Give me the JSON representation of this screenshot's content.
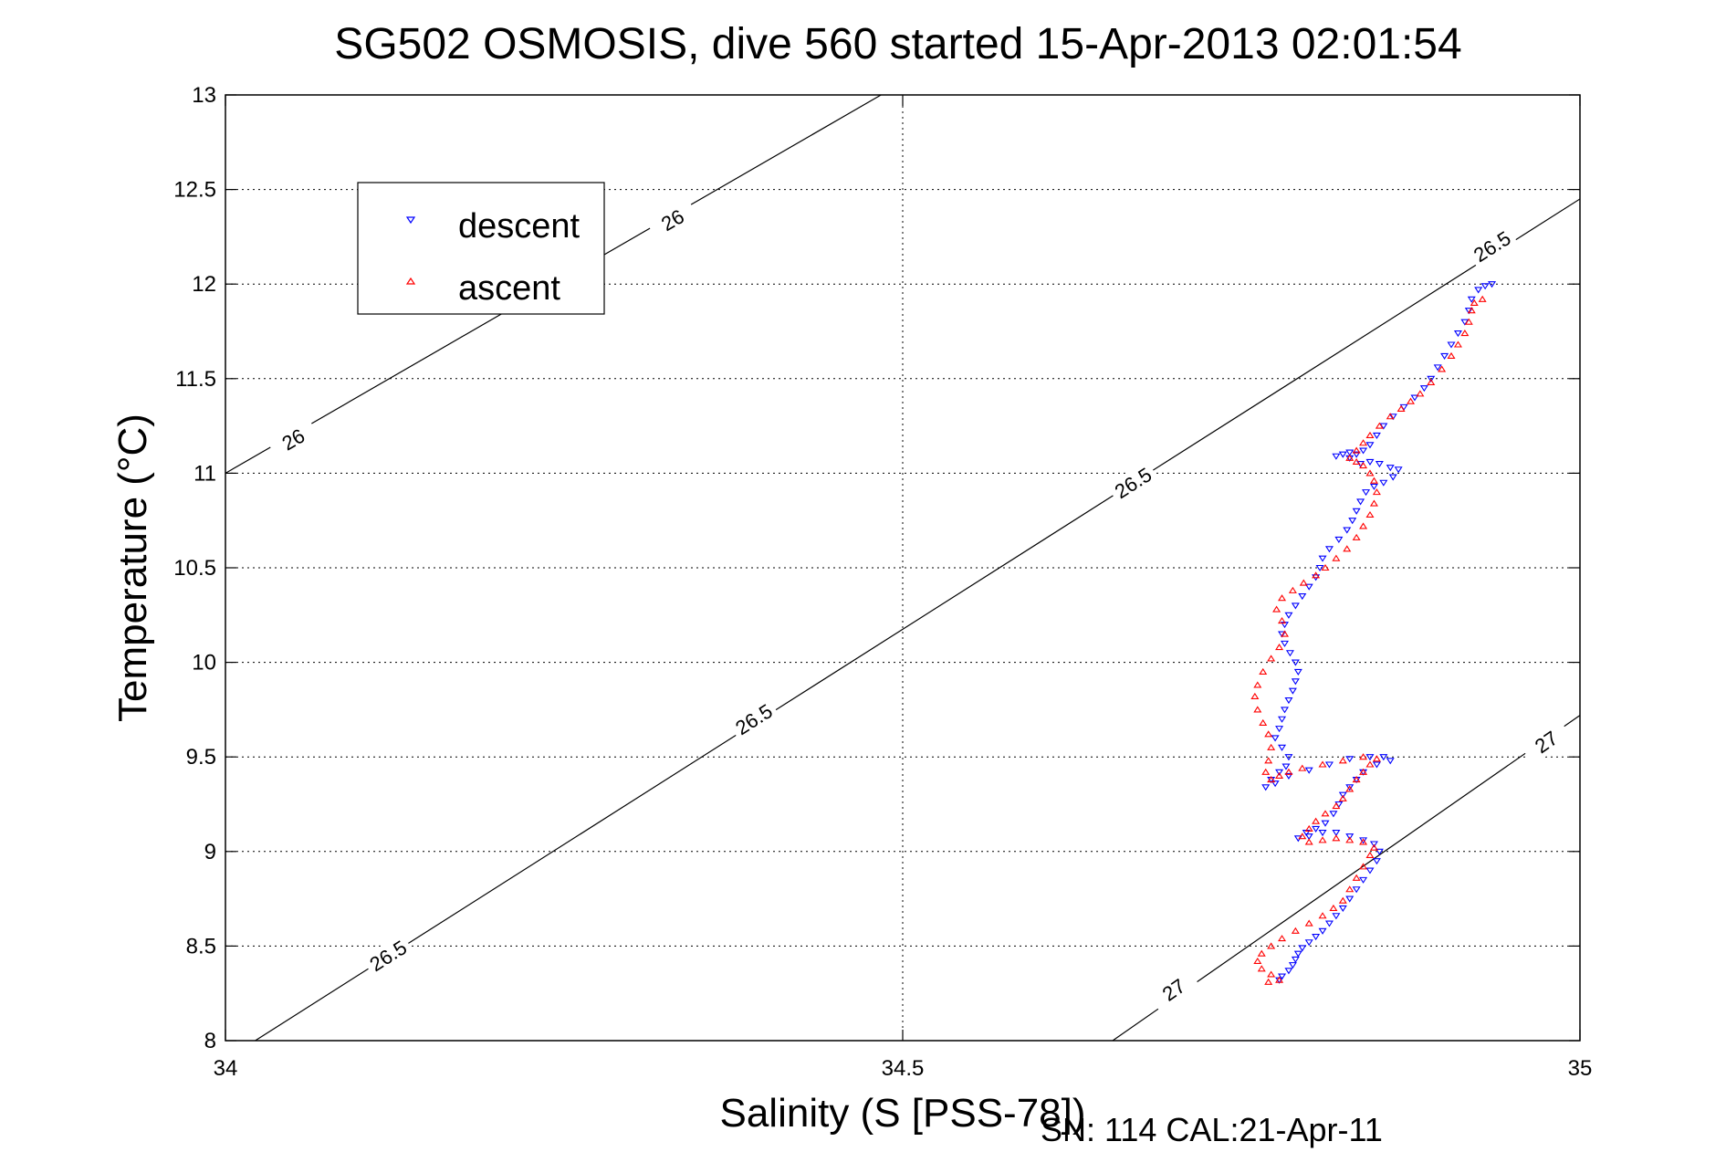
{
  "chart_data": {
    "type": "scatter",
    "title": "SG502 OSMOSIS, dive 560 started 15-Apr-2013 02:01:54",
    "xlabel": "Salinity (S [PSS-78])",
    "ylabel": "Temperature (°C)",
    "footer": "SN: 114  CAL:21-Apr-11",
    "xlim": [
      34,
      35
    ],
    "ylim": [
      8,
      13
    ],
    "xticks": [
      "34",
      "34.5",
      "35"
    ],
    "yticks": [
      "8",
      "8.5",
      "9",
      "9.5",
      "10",
      "10.5",
      "11",
      "11.5",
      "12",
      "12.5",
      "13"
    ],
    "grid": true,
    "legend_position": "top-left",
    "density_contours": [
      {
        "level": "26",
        "points": [
          [
            34.0,
            11.0
          ],
          [
            34.484,
            13.0
          ]
        ],
        "labels": [
          [
            34.05,
            11.18
          ],
          [
            34.33,
            12.34
          ]
        ]
      },
      {
        "level": "26.5",
        "points": [
          [
            34.0,
            7.9
          ],
          [
            35.0,
            12.45
          ]
        ],
        "labels": [
          [
            34.12,
            8.45
          ],
          [
            34.39,
            9.7
          ],
          [
            34.67,
            10.95
          ],
          [
            34.935,
            12.2
          ]
        ]
      },
      {
        "level": "27",
        "points": [
          [
            34.655,
            8.0
          ],
          [
            35.0,
            9.72
          ]
        ],
        "labels": [
          [
            34.7,
            8.27
          ],
          [
            34.975,
            9.58
          ]
        ]
      }
    ],
    "series": [
      {
        "name": "descent",
        "color": "#0000ff",
        "marker": "triangle-down",
        "points": [
          [
            34.935,
            12.0
          ],
          [
            34.93,
            11.99
          ],
          [
            34.925,
            11.97
          ],
          [
            34.92,
            11.92
          ],
          [
            34.918,
            11.86
          ],
          [
            34.915,
            11.8
          ],
          [
            34.91,
            11.74
          ],
          [
            34.905,
            11.68
          ],
          [
            34.9,
            11.62
          ],
          [
            34.895,
            11.56
          ],
          [
            34.89,
            11.5
          ],
          [
            34.885,
            11.45
          ],
          [
            34.878,
            11.4
          ],
          [
            34.87,
            11.35
          ],
          [
            34.862,
            11.3
          ],
          [
            34.855,
            11.25
          ],
          [
            34.85,
            11.2
          ],
          [
            34.845,
            11.15
          ],
          [
            34.84,
            11.12
          ],
          [
            34.835,
            11.1
          ],
          [
            34.83,
            11.11
          ],
          [
            34.825,
            11.1
          ],
          [
            34.82,
            11.09
          ],
          [
            34.83,
            11.08
          ],
          [
            34.838,
            11.05
          ],
          [
            34.845,
            11.06
          ],
          [
            34.852,
            11.05
          ],
          [
            34.86,
            11.03
          ],
          [
            34.866,
            11.02
          ],
          [
            34.862,
            10.98
          ],
          [
            34.855,
            10.95
          ],
          [
            34.848,
            10.93
          ],
          [
            34.842,
            10.9
          ],
          [
            34.838,
            10.85
          ],
          [
            34.835,
            10.8
          ],
          [
            34.832,
            10.75
          ],
          [
            34.828,
            10.7
          ],
          [
            34.822,
            10.65
          ],
          [
            34.815,
            10.6
          ],
          [
            34.81,
            10.55
          ],
          [
            34.808,
            10.5
          ],
          [
            34.805,
            10.45
          ],
          [
            34.8,
            10.4
          ],
          [
            34.795,
            10.35
          ],
          [
            34.79,
            10.3
          ],
          [
            34.785,
            10.25
          ],
          [
            34.782,
            10.2
          ],
          [
            34.78,
            10.15
          ],
          [
            34.782,
            10.1
          ],
          [
            34.786,
            10.05
          ],
          [
            34.79,
            10.0
          ],
          [
            34.792,
            9.95
          ],
          [
            34.79,
            9.9
          ],
          [
            34.788,
            9.85
          ],
          [
            34.785,
            9.8
          ],
          [
            34.782,
            9.75
          ],
          [
            34.78,
            9.7
          ],
          [
            34.778,
            9.65
          ],
          [
            34.775,
            9.6
          ],
          [
            34.78,
            9.55
          ],
          [
            34.785,
            9.5
          ],
          [
            34.783,
            9.45
          ],
          [
            34.778,
            9.42
          ],
          [
            34.772,
            9.38
          ],
          [
            34.768,
            9.34
          ],
          [
            34.775,
            9.36
          ],
          [
            34.785,
            9.4
          ],
          [
            34.8,
            9.43
          ],
          [
            34.815,
            9.46
          ],
          [
            34.83,
            9.49
          ],
          [
            34.845,
            9.5
          ],
          [
            34.855,
            9.5
          ],
          [
            34.86,
            9.48
          ],
          [
            34.85,
            9.46
          ],
          [
            34.84,
            9.42
          ],
          [
            34.835,
            9.38
          ],
          [
            34.83,
            9.34
          ],
          [
            34.825,
            9.3
          ],
          [
            34.822,
            9.25
          ],
          [
            34.818,
            9.2
          ],
          [
            34.812,
            9.15
          ],
          [
            34.805,
            9.12
          ],
          [
            34.798,
            9.1
          ],
          [
            34.792,
            9.07
          ],
          [
            34.8,
            9.08
          ],
          [
            34.81,
            9.1
          ],
          [
            34.82,
            9.1
          ],
          [
            34.83,
            9.08
          ],
          [
            34.84,
            9.06
          ],
          [
            34.848,
            9.04
          ],
          [
            34.852,
            9.0
          ],
          [
            34.85,
            8.95
          ],
          [
            34.845,
            8.9
          ],
          [
            34.84,
            8.85
          ],
          [
            34.835,
            8.8
          ],
          [
            34.83,
            8.75
          ],
          [
            34.825,
            8.7
          ],
          [
            34.82,
            8.66
          ],
          [
            34.815,
            8.62
          ],
          [
            34.81,
            8.58
          ],
          [
            34.805,
            8.55
          ],
          [
            34.8,
            8.52
          ],
          [
            34.795,
            8.49
          ],
          [
            34.792,
            8.46
          ],
          [
            34.79,
            8.43
          ],
          [
            34.788,
            8.4
          ],
          [
            34.785,
            8.37
          ],
          [
            34.78,
            8.34
          ],
          [
            34.778,
            8.32
          ]
        ]
      },
      {
        "name": "ascent",
        "color": "#ff0000",
        "marker": "triangle-up",
        "points": [
          [
            34.77,
            8.31
          ],
          [
            34.778,
            8.32
          ],
          [
            34.772,
            8.35
          ],
          [
            34.765,
            8.38
          ],
          [
            34.762,
            8.42
          ],
          [
            34.765,
            8.46
          ],
          [
            34.772,
            8.5
          ],
          [
            34.78,
            8.54
          ],
          [
            34.79,
            8.58
          ],
          [
            34.8,
            8.62
          ],
          [
            34.81,
            8.66
          ],
          [
            34.818,
            8.7
          ],
          [
            34.825,
            8.74
          ],
          [
            34.83,
            8.8
          ],
          [
            34.835,
            8.86
          ],
          [
            34.84,
            8.92
          ],
          [
            34.845,
            8.98
          ],
          [
            34.848,
            9.02
          ],
          [
            34.84,
            9.05
          ],
          [
            34.83,
            9.06
          ],
          [
            34.82,
            9.07
          ],
          [
            34.81,
            9.06
          ],
          [
            34.8,
            9.05
          ],
          [
            34.795,
            9.08
          ],
          [
            34.8,
            9.12
          ],
          [
            34.805,
            9.16
          ],
          [
            34.812,
            9.2
          ],
          [
            34.82,
            9.24
          ],
          [
            34.825,
            9.28
          ],
          [
            34.83,
            9.33
          ],
          [
            34.835,
            9.38
          ],
          [
            34.84,
            9.42
          ],
          [
            34.845,
            9.46
          ],
          [
            34.85,
            9.49
          ],
          [
            34.84,
            9.5
          ],
          [
            34.825,
            9.48
          ],
          [
            34.81,
            9.46
          ],
          [
            34.795,
            9.44
          ],
          [
            34.785,
            9.42
          ],
          [
            34.778,
            9.4
          ],
          [
            34.772,
            9.38
          ],
          [
            34.768,
            9.42
          ],
          [
            34.77,
            9.48
          ],
          [
            34.772,
            9.55
          ],
          [
            34.77,
            9.62
          ],
          [
            34.766,
            9.68
          ],
          [
            34.762,
            9.75
          ],
          [
            34.76,
            9.82
          ],
          [
            34.762,
            9.88
          ],
          [
            34.766,
            9.95
          ],
          [
            34.772,
            10.02
          ],
          [
            34.778,
            10.08
          ],
          [
            34.782,
            10.15
          ],
          [
            34.78,
            10.22
          ],
          [
            34.776,
            10.28
          ],
          [
            34.78,
            10.34
          ],
          [
            34.788,
            10.38
          ],
          [
            34.796,
            10.42
          ],
          [
            34.805,
            10.46
          ],
          [
            34.812,
            10.5
          ],
          [
            34.82,
            10.55
          ],
          [
            34.828,
            10.6
          ],
          [
            34.835,
            10.66
          ],
          [
            34.84,
            10.72
          ],
          [
            34.845,
            10.78
          ],
          [
            34.848,
            10.84
          ],
          [
            34.85,
            10.9
          ],
          [
            34.848,
            10.96
          ],
          [
            34.845,
            11.0
          ],
          [
            34.84,
            11.04
          ],
          [
            34.835,
            11.06
          ],
          [
            34.83,
            11.08
          ],
          [
            34.835,
            11.12
          ],
          [
            34.84,
            11.16
          ],
          [
            34.845,
            11.2
          ],
          [
            34.852,
            11.25
          ],
          [
            34.86,
            11.3
          ],
          [
            34.868,
            11.34
          ],
          [
            34.875,
            11.38
          ],
          [
            34.882,
            11.42
          ],
          [
            34.89,
            11.48
          ],
          [
            34.898,
            11.55
          ],
          [
            34.905,
            11.62
          ],
          [
            34.91,
            11.68
          ],
          [
            34.915,
            11.74
          ],
          [
            34.918,
            11.8
          ],
          [
            34.92,
            11.86
          ],
          [
            34.922,
            11.9
          ],
          [
            34.928,
            11.92
          ]
        ]
      }
    ]
  }
}
